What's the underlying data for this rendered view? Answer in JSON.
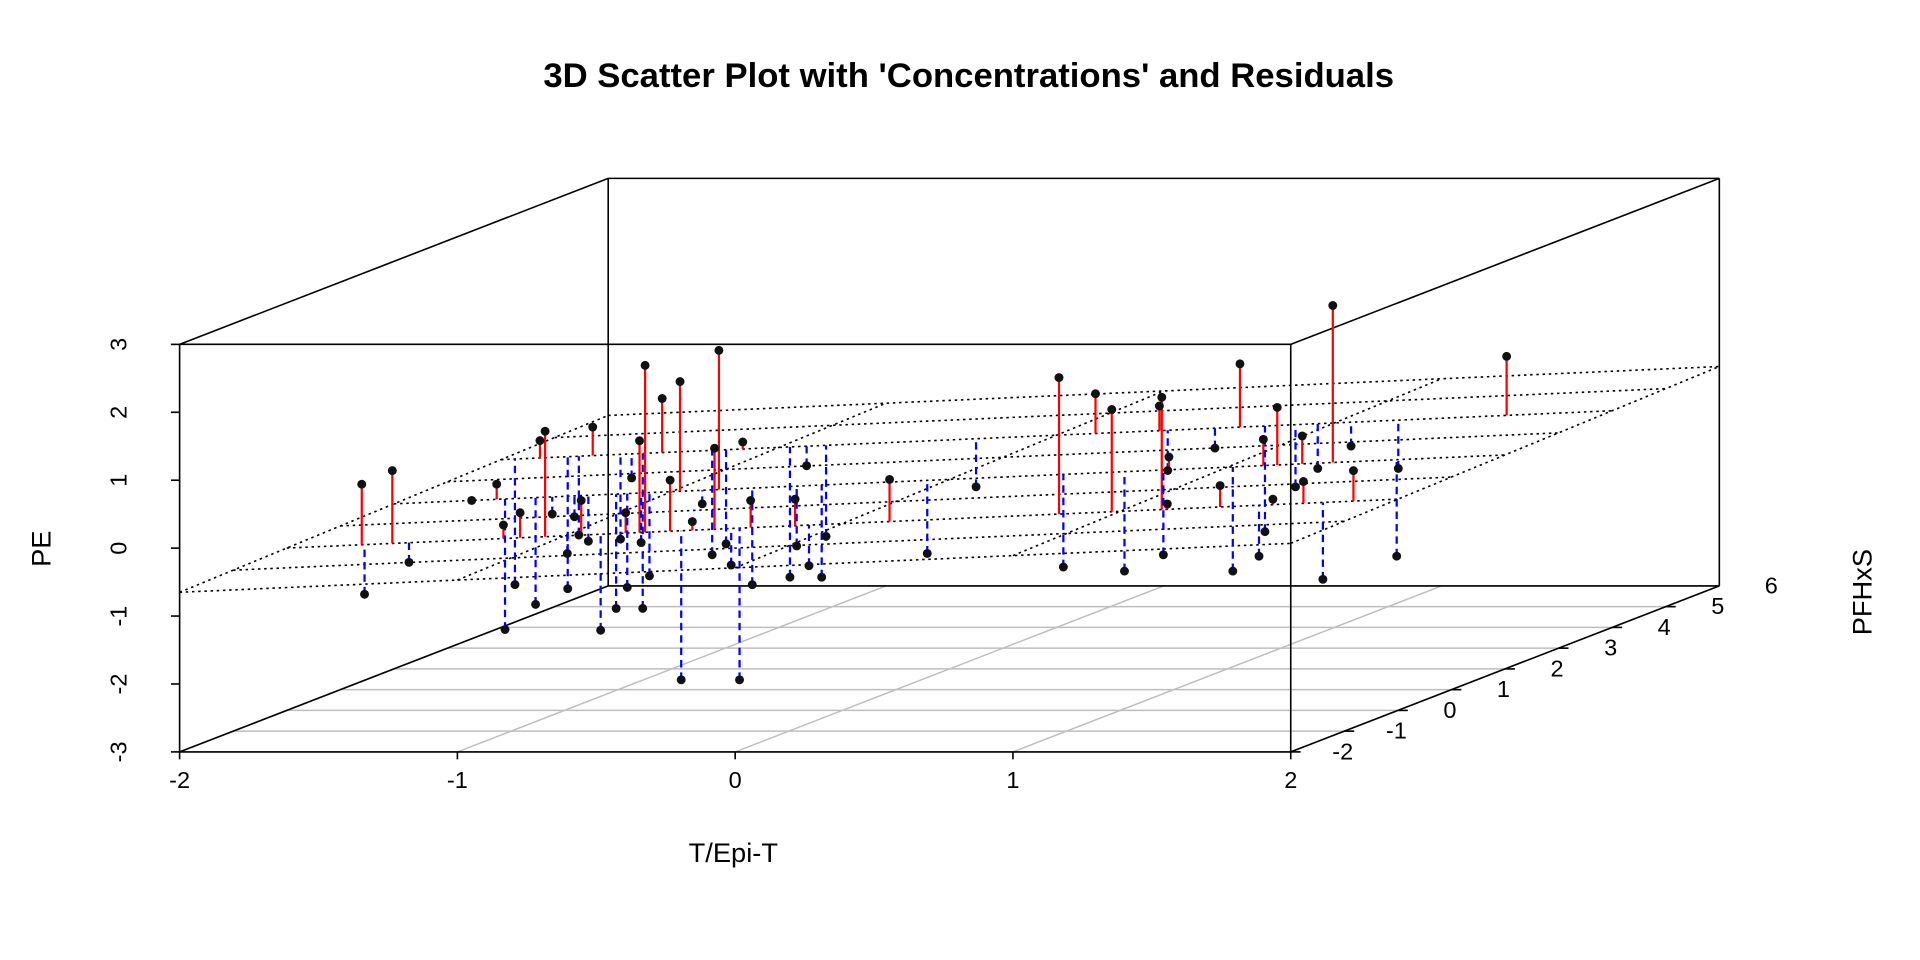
{
  "chart_data": {
    "type": "scatter3d",
    "title": "3D Scatter Plot with 'Concentrations' and Residuals",
    "xlabel": "T/Epi-T",
    "ylabel": "PFHxS",
    "zlabel": "PE",
    "xlim": [
      -2,
      2
    ],
    "xticks": [
      -2,
      -1,
      0,
      1,
      2
    ],
    "ylim": [
      -2,
      6
    ],
    "yticks": [
      -2,
      -1,
      0,
      1,
      2,
      3,
      4,
      5,
      6
    ],
    "zlim": [
      -3,
      3
    ],
    "zticks": [
      -3,
      -2,
      -1,
      0,
      1,
      2,
      3
    ],
    "grid": true,
    "point_color": "#111111",
    "positive_residual_color": "#ff0000",
    "negative_residual_color": "#0000ff",
    "plane": {
      "intercept": -0.25,
      "x_coef": 0.18,
      "y_coef": 0.02
    },
    "x": [
      -1.73,
      -1.72,
      -1.62,
      -1.56,
      -1.72,
      -1.63,
      -1.22,
      -1.6,
      -1.95,
      -1.16,
      -1.49,
      -1.86,
      -1.07,
      -1.43,
      -1.76,
      -0.99,
      -1.35,
      -1.72,
      -0.94,
      -1.3,
      -1.67,
      -0.87,
      -1.2,
      -1.57,
      -0.78,
      -1.16,
      -1.53,
      -0.73,
      -1.11,
      -1.49,
      -0.71,
      -1.08,
      -1.42,
      -0.62,
      -0.97,
      -0.58,
      -0.54,
      -0.89,
      -1.24,
      -0.46,
      -0.83,
      -1.19,
      -0.4,
      -0.37,
      -1.13,
      -0.33,
      -0.71,
      -0.96,
      -0.17,
      -0.55,
      -0.9,
      -0.12,
      -0.46,
      -0.83,
      0.17,
      -0.08,
      -0.29,
      0.78,
      0.41,
      0.14,
      0.97,
      0.63,
      0.37,
      1.15,
      0.77,
      0.4,
      1.17,
      0.79,
      0.57,
      1.36,
      1.02,
      0.66,
      1.5,
      1.13,
      0.75,
      1.55,
      1.18,
      0.86,
      1.66,
      1.27,
      0.94,
      1.73,
      1.38,
      1.06,
      1.84,
      1.61,
      1.23,
      1.62
    ],
    "y": [
      0,
      0,
      0,
      0,
      2,
      2,
      0,
      2,
      4,
      0,
      2,
      4,
      0,
      2,
      4,
      0,
      2,
      4,
      0,
      2,
      4,
      0,
      2,
      4,
      0,
      2,
      4,
      0,
      2,
      4,
      0,
      2,
      4,
      0,
      2,
      0,
      0,
      2,
      4,
      0,
      2,
      4,
      0,
      0,
      4,
      0,
      2,
      4,
      0,
      2,
      4,
      0,
      2,
      4,
      0,
      2,
      4,
      0,
      2,
      4,
      0,
      2,
      4,
      0,
      2,
      4,
      0,
      2,
      4,
      0,
      2,
      4,
      0,
      2,
      4,
      0,
      2,
      4,
      0,
      2,
      4,
      0,
      2,
      4,
      0,
      2,
      4,
      4
    ],
    "z": [
      0.33,
      -1.29,
      0.53,
      -0.82,
      -0.52,
      -0.28,
      -0.27,
      -2.42,
      -2.37,
      -0.09,
      -2.05,
      -0.25,
      1.11,
      -0.72,
      -2.43,
      -0.69,
      -0.76,
      -1.64,
      0.09,
      -1.12,
      -0.05,
      -1.82,
      -2.11,
      -1.7,
      -0.09,
      -1.8,
      -0.8,
      0.97,
      -1.14,
      -2.72,
      2.08,
      -1.63,
      0.37,
      0.39,
      1.23,
      -2.55,
      -0.22,
      -0.57,
      -1.93,
      0.86,
      1.69,
      -1.77,
      -0.86,
      -2.55,
      -0.27,
      0.09,
      -1.76,
      -2.26,
      0.11,
      -1.19,
      -0.62,
      -0.87,
      -1.65,
      -1.66,
      0.4,
      -1.3,
      -0.93,
      1.9,
      -1.5,
      0.44,
      1.43,
      -1.56,
      0.26,
      1.61,
      -1.32,
      -0.69,
      0.04,
      0.12,
      -0.36,
      0.31,
      -1.56,
      0.88,
      -0.73,
      0.38,
      -1.59,
      0.11,
      0.85,
      -0.93,
      0.37,
      0.43,
      -0.66,
      -1.07,
      2.35,
      -0.33,
      0.53,
      -1.34,
      -0.66,
      0.99
    ]
  }
}
